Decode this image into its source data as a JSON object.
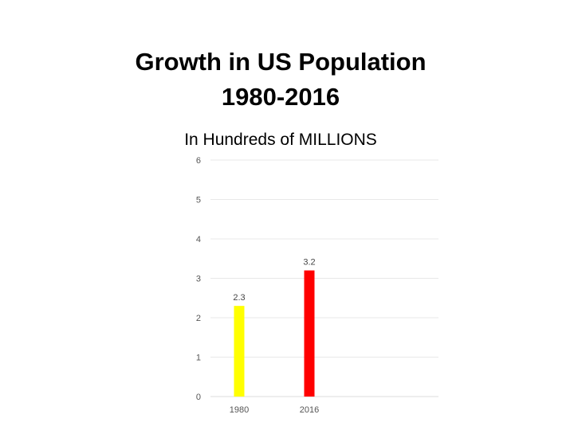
{
  "chart_data": {
    "type": "bar",
    "title": "Growth in US Population",
    "title_line2": "1980-2016",
    "subtitle": "In Hundreds of MILLIONS",
    "xlabel": "",
    "ylabel": "",
    "categories": [
      "1980",
      "2016"
    ],
    "values": [
      2.3,
      3.2
    ],
    "data_labels": [
      "2.3",
      "3.2"
    ],
    "colors": [
      "#ffff00",
      "#ff0000"
    ],
    "ylim": [
      0,
      6
    ],
    "yticks": [
      0,
      1,
      2,
      3,
      4,
      5,
      6
    ],
    "grid": true,
    "legend": "none"
  }
}
